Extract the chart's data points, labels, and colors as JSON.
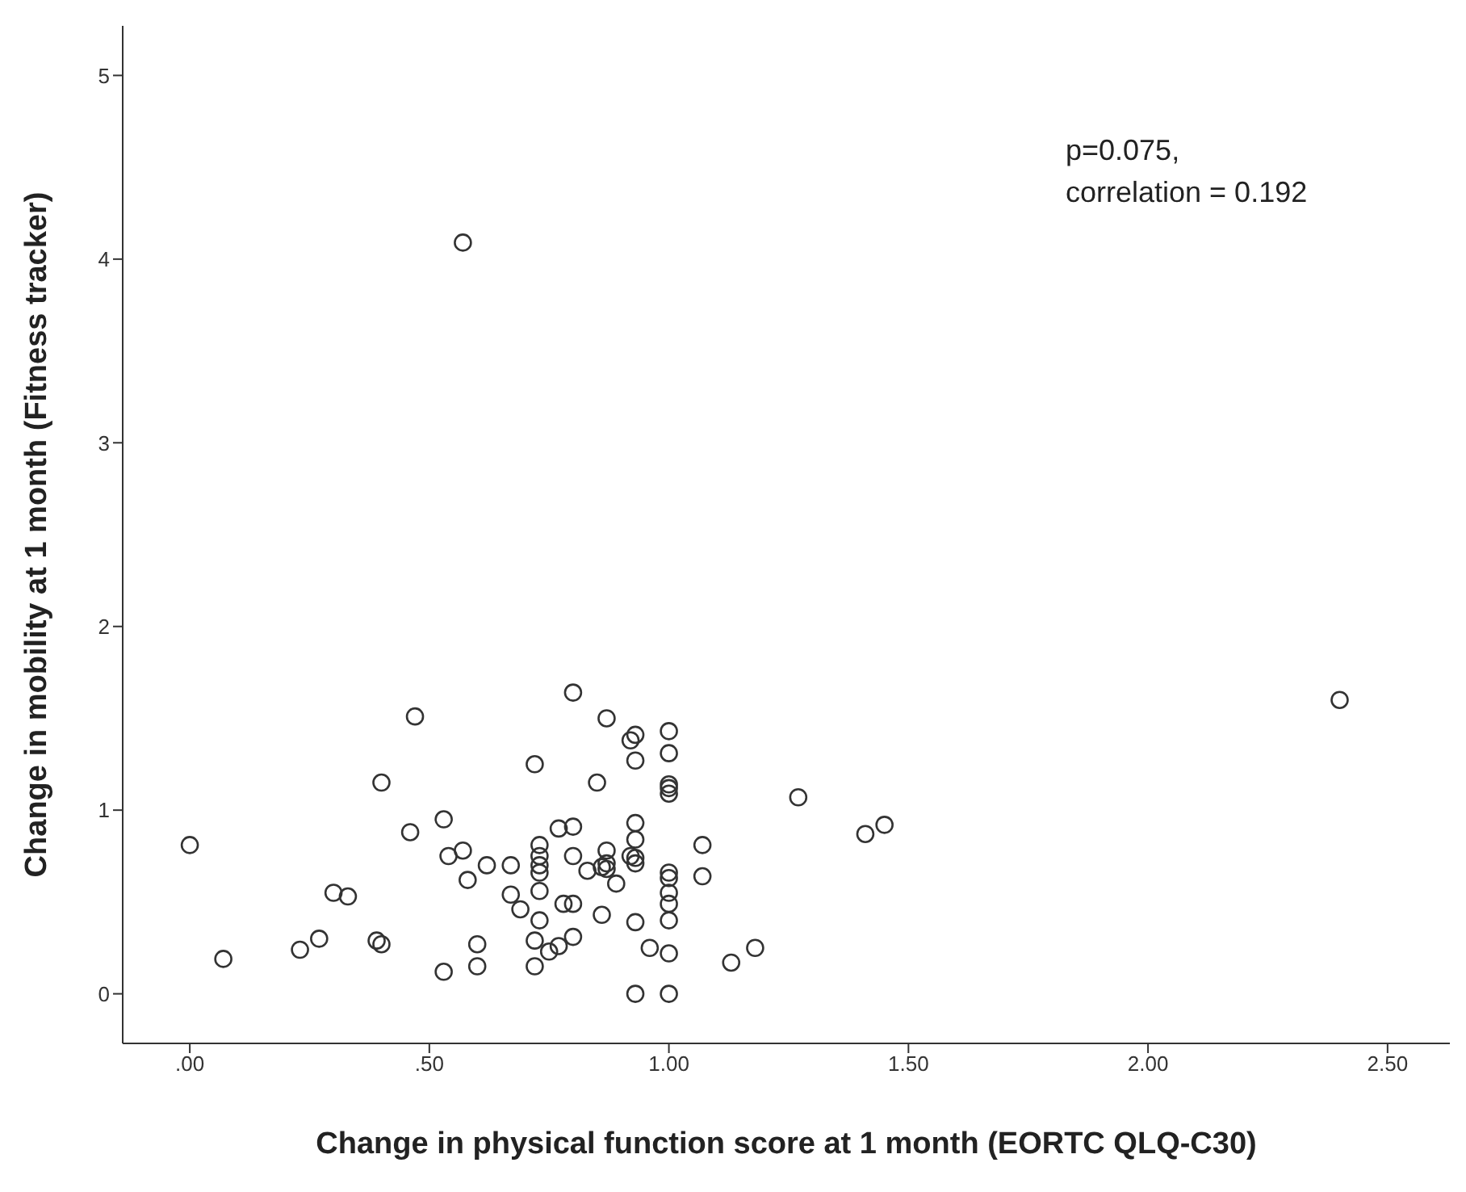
{
  "chart_data": {
    "type": "scatter",
    "xlabel": "Change in physical function score at 1 month (EORTC QLQ-C30)",
    "ylabel": "Change in mobility at 1 month (Fitness tracker)",
    "annotations": [
      "p=0.075,",
      "correlation = 0.192"
    ],
    "xlim": [
      -0.14,
      2.63
    ],
    "ylim": [
      -0.27,
      5.27
    ],
    "xticks": [
      {
        "value": 0,
        "label": ".00"
      },
      {
        "value": 0.5,
        "label": ".50"
      },
      {
        "value": 1,
        "label": "1.00"
      },
      {
        "value": 1.5,
        "label": "1.50"
      },
      {
        "value": 2,
        "label": "2.00"
      },
      {
        "value": 2.5,
        "label": "2.50"
      }
    ],
    "yticks": [
      0,
      1,
      2,
      3,
      4,
      5
    ],
    "grid": false,
    "legend": false,
    "marker": "circle",
    "series": [
      {
        "color": "#333333",
        "x": [
          0,
          0.07,
          0.23,
          0.27,
          0.3,
          0.33,
          0.39,
          0.4,
          0.4,
          0.46,
          0.47,
          0.53,
          0.53,
          0.54,
          0.57,
          0.57,
          0.58,
          0.6,
          0.6,
          0.62,
          0.67,
          0.67,
          0.69,
          0.72,
          0.72,
          0.72,
          0.73,
          0.73,
          0.73,
          0.73,
          0.73,
          0.73,
          0.75,
          0.77,
          0.77,
          0.78,
          0.8,
          0.8,
          0.8,
          0.8,
          0.8,
          0.83,
          0.85,
          0.86,
          0.87,
          0.87,
          0.87,
          0.87,
          0.86,
          0.89,
          0.92,
          0.92,
          0.93,
          0.93,
          0.93,
          0.93,
          0.93,
          0.93,
          0.93,
          0.93,
          0.96,
          1.0,
          1.0,
          1.0,
          1.0,
          1.0,
          1.0,
          1.0,
          1.0,
          1.0,
          1.0,
          1.0,
          1.0,
          1.07,
          1.07,
          1.13,
          1.18,
          1.27,
          1.41,
          1.45,
          2.4
        ],
        "values": [
          0.81,
          0.19,
          0.24,
          0.3,
          0.55,
          0.53,
          0.29,
          0.27,
          1.15,
          0.88,
          1.51,
          0.95,
          0.12,
          0.75,
          0.78,
          4.09,
          0.62,
          0.27,
          0.15,
          0.7,
          0.7,
          0.54,
          0.46,
          1.25,
          0.29,
          0.15,
          0.81,
          0.75,
          0.7,
          0.66,
          0.56,
          0.4,
          0.23,
          0.26,
          0.9,
          0.49,
          1.64,
          0.91,
          0.75,
          0.49,
          0.31,
          0.67,
          1.15,
          0.43,
          1.5,
          0.78,
          0.71,
          0.68,
          0.69,
          0.6,
          0.75,
          1.38,
          1.41,
          1.27,
          0.93,
          0.84,
          0.74,
          0.71,
          0.39,
          0.0,
          0.25,
          1.43,
          1.31,
          1.14,
          1.12,
          1.09,
          0.66,
          0.63,
          0.55,
          0.49,
          0.4,
          0.22,
          0.0,
          0.81,
          0.64,
          0.17,
          0.25,
          1.07,
          0.87,
          0.92,
          1.6
        ]
      }
    ]
  }
}
